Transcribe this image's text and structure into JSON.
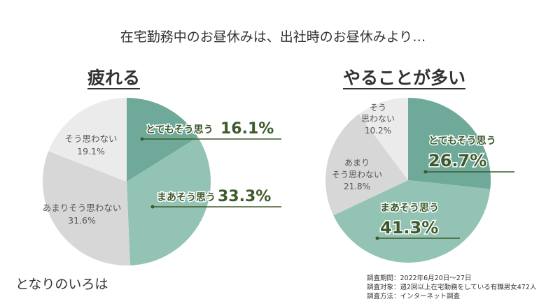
{
  "title": "在宅勤務中のお昼休みは、出社時のお昼休みより…",
  "logo": "となりのいろは",
  "notes": [
    "調査期間：2022年6月20日～27日",
    "調査対象：週2回以上在宅勤務をしている有職男女472人",
    "調査方法：インターネット調査"
  ],
  "chart_data": [
    {
      "type": "pie",
      "title": "疲れる",
      "categories": [
        "とてもそう思う",
        "まあそう思う",
        "あまりそう思わない",
        "そう思わない"
      ],
      "values": [
        16.1,
        33.3,
        31.6,
        19.1
      ],
      "labels": [
        "16.1%",
        "33.3%",
        "31.6%",
        "19.1%"
      ],
      "colors": [
        "#6fa999",
        "#93c3b4",
        "#d7d7d7",
        "#ebebeb"
      ]
    },
    {
      "type": "pie",
      "title": "やることが多い",
      "categories": [
        "とてもそう思う",
        "まあそう思う",
        "あまりそう思わない",
        "そう思わない"
      ],
      "values": [
        26.7,
        41.3,
        21.8,
        10.2
      ],
      "labels": [
        "26.7%",
        "41.3%",
        "21.8%",
        "10.2%"
      ],
      "colors": [
        "#6fa999",
        "#93c3b4",
        "#d7d7d7",
        "#ebebeb"
      ]
    }
  ]
}
